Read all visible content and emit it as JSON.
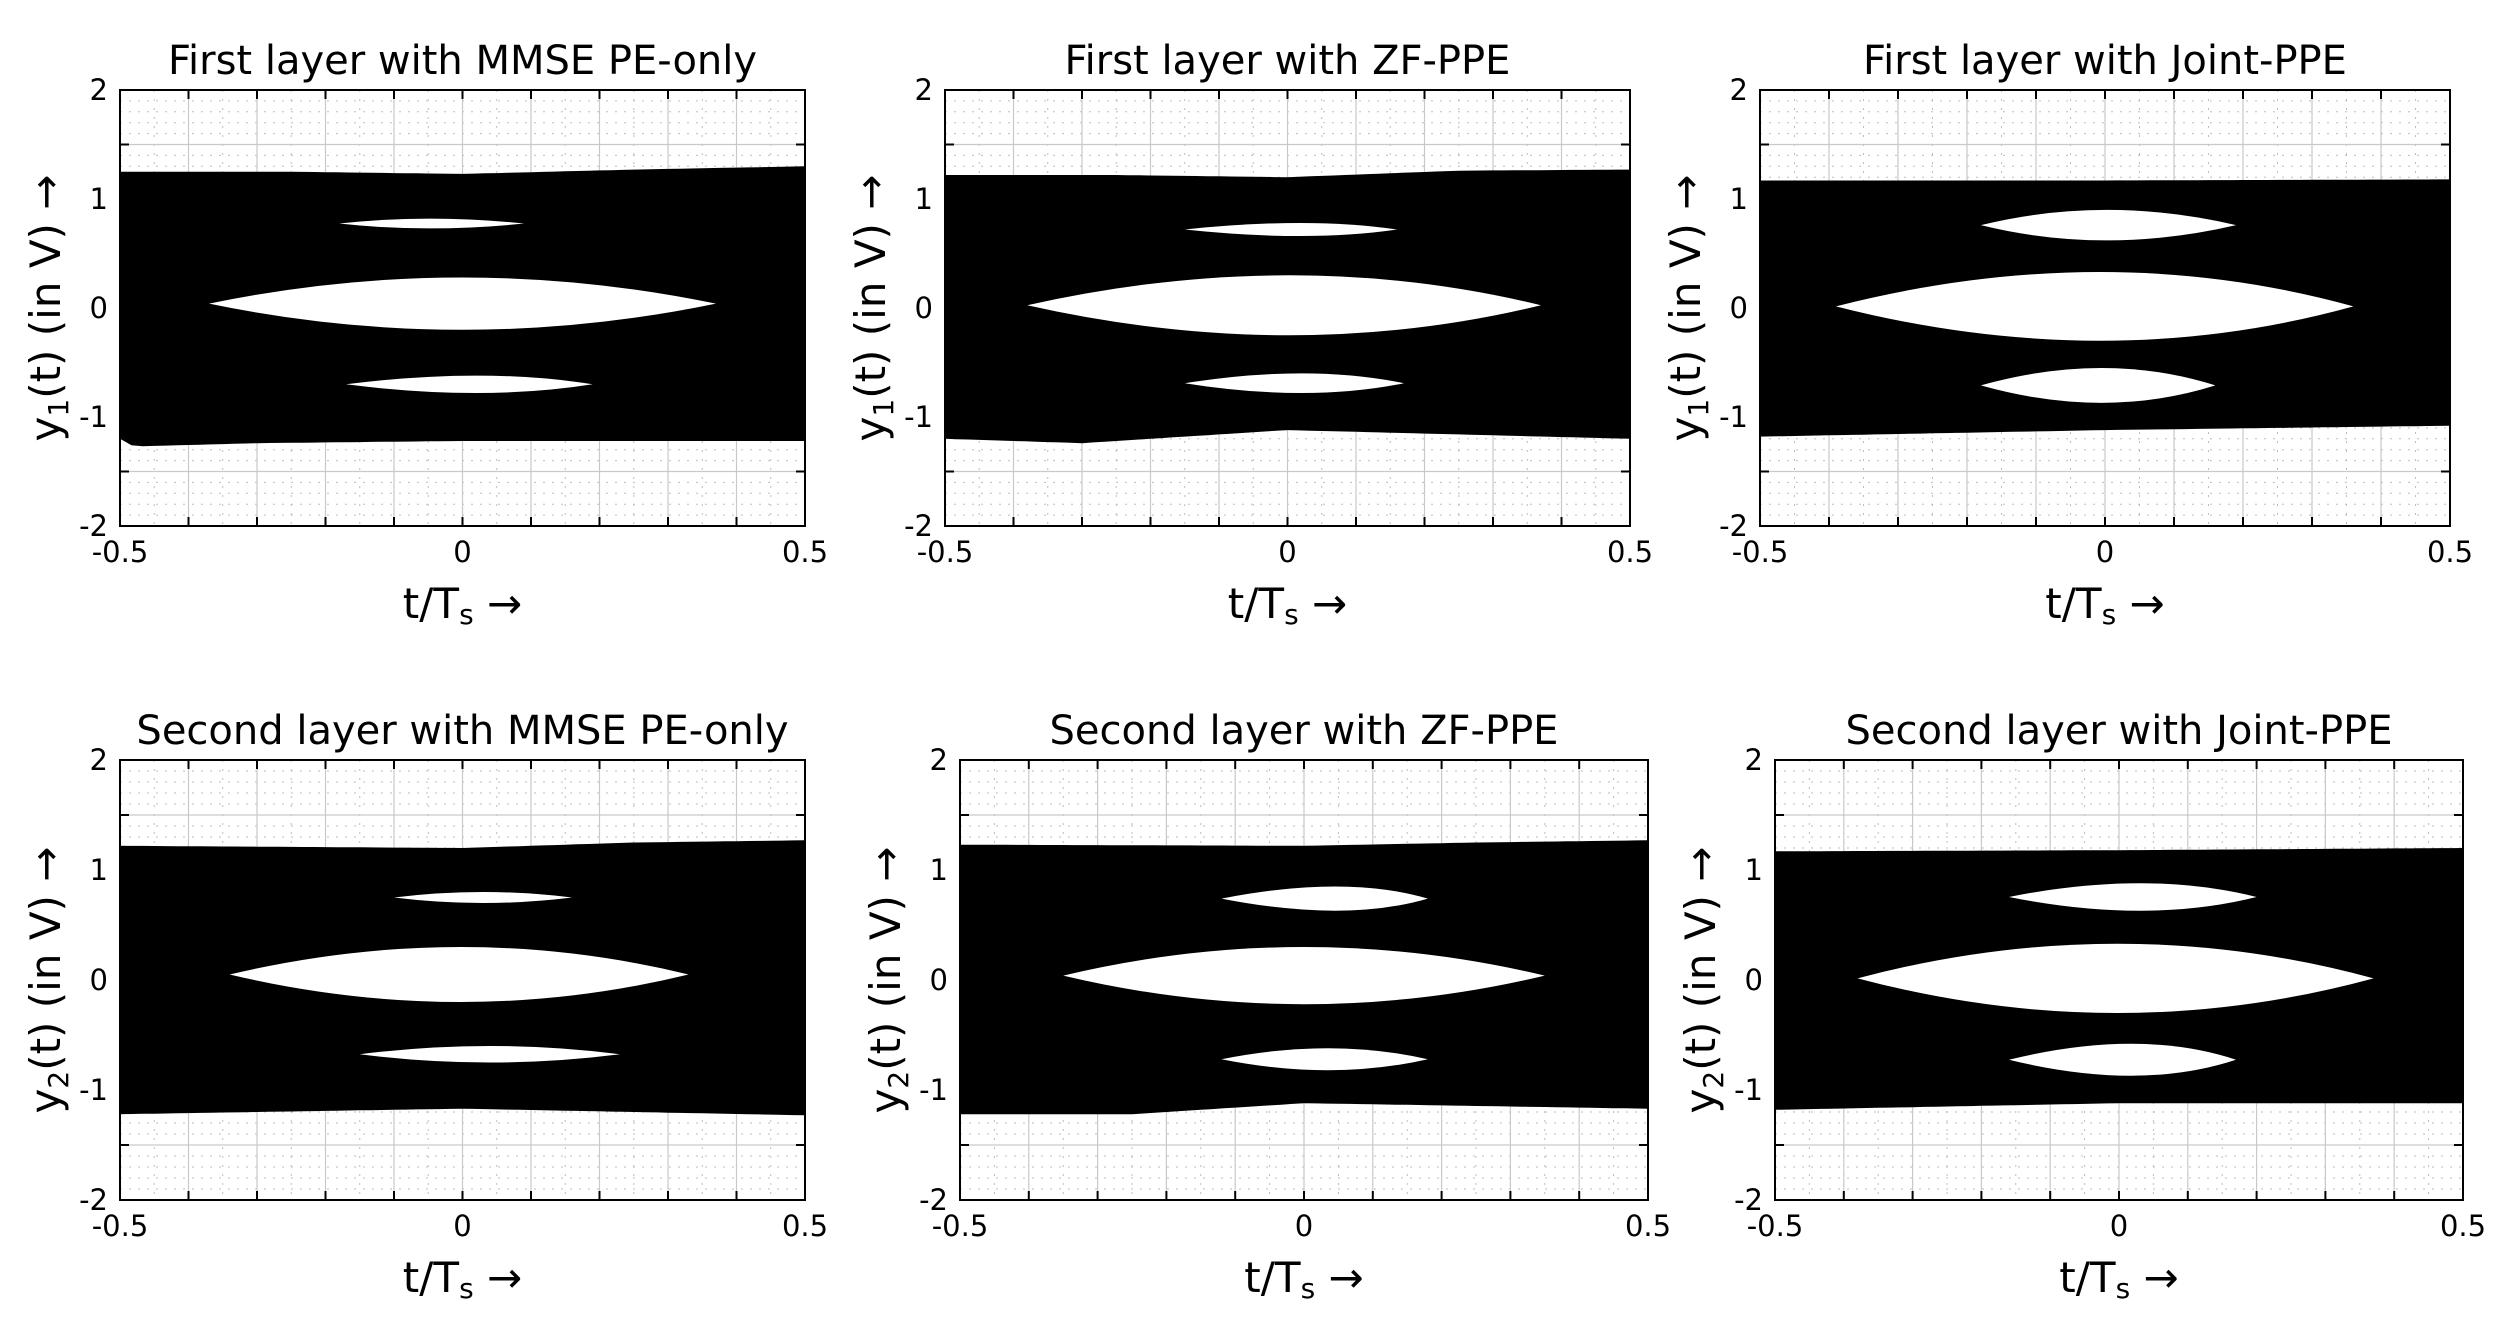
{
  "figure": {
    "xlabel_main": "t/T",
    "xlabel_sub": "s",
    "xlabel_arrow": "→",
    "ylabel_tail": "(t) (in V)",
    "ylabel_arrow": "→"
  },
  "chart_data": [
    {
      "type": "area",
      "title": "First layer with MMSE PE-only",
      "ylabel_base": "y",
      "ylabel_sub": "1",
      "xlim": [
        -0.5,
        0.5
      ],
      "ylim": [
        -2,
        2
      ],
      "xticks": [
        "-0.5",
        "0",
        "0.5"
      ],
      "yticks": [
        "2",
        "1",
        "0",
        "-1",
        "-2"
      ],
      "grid": true,
      "band": {
        "upper": [
          [
            -0.5,
            1.25
          ],
          [
            -0.25,
            1.25
          ],
          [
            0,
            1.23
          ],
          [
            0.25,
            1.27
          ],
          [
            0.5,
            1.3
          ]
        ],
        "lower": [
          [
            -0.5,
            -1.2
          ],
          [
            -0.48,
            -1.27
          ],
          [
            -0.3,
            -1.24
          ],
          [
            0,
            -1.22
          ],
          [
            0.5,
            -1.22
          ]
        ]
      },
      "eyes": [
        {
          "t0": -0.18,
          "t1": 0.09,
          "tc": -0.05,
          "top": 0.82,
          "bottom": 0.73
        },
        {
          "t0": -0.37,
          "t1": 0.37,
          "tc": 0.0,
          "top": 0.28,
          "bottom": -0.2
        },
        {
          "t0": -0.17,
          "t1": 0.19,
          "tc": 0.03,
          "top": -0.62,
          "bottom": -0.78
        }
      ]
    },
    {
      "type": "area",
      "title": "First layer with ZF-PPE",
      "ylabel_base": "y",
      "ylabel_sub": "1",
      "xlim": [
        -0.5,
        0.5
      ],
      "ylim": [
        -2,
        2
      ],
      "xticks": [
        "-0.5",
        "0",
        "0.5"
      ],
      "yticks": [
        "2",
        "1",
        "0",
        "-1",
        "-2"
      ],
      "grid": true,
      "band": {
        "upper": [
          [
            -0.5,
            1.22
          ],
          [
            -0.25,
            1.22
          ],
          [
            0,
            1.2
          ],
          [
            0.25,
            1.26
          ],
          [
            0.5,
            1.27
          ]
        ],
        "lower": [
          [
            -0.5,
            -1.2
          ],
          [
            -0.3,
            -1.24
          ],
          [
            0,
            -1.12
          ],
          [
            0.25,
            -1.16
          ],
          [
            0.5,
            -1.2
          ]
        ]
      },
      "eyes": [
        {
          "t0": -0.15,
          "t1": 0.16,
          "tc": 0.03,
          "top": 0.78,
          "bottom": 0.66
        },
        {
          "t0": -0.38,
          "t1": 0.37,
          "tc": 0.01,
          "top": 0.3,
          "bottom": -0.25
        },
        {
          "t0": -0.15,
          "t1": 0.17,
          "tc": 0.03,
          "top": -0.6,
          "bottom": -0.78
        }
      ]
    },
    {
      "type": "area",
      "title": "First layer with Joint-PPE",
      "ylabel_base": "y",
      "ylabel_sub": "1",
      "xlim": [
        -0.5,
        0.5
      ],
      "ylim": [
        -2,
        2
      ],
      "xticks": [
        "-0.5",
        "0",
        "0.5"
      ],
      "yticks": [
        "2",
        "1",
        "0",
        "-1",
        "-2"
      ],
      "grid": true,
      "band": {
        "upper": [
          [
            -0.5,
            1.17
          ],
          [
            0,
            1.17
          ],
          [
            0.5,
            1.18
          ]
        ],
        "lower": [
          [
            -0.5,
            -1.18
          ],
          [
            0,
            -1.12
          ],
          [
            0.5,
            -1.08
          ]
        ]
      },
      "eyes": [
        {
          "t0": -0.18,
          "t1": 0.19,
          "tc": 0.0,
          "top": 0.9,
          "bottom": 0.62
        },
        {
          "t0": -0.39,
          "t1": 0.36,
          "tc": 0.0,
          "top": 0.33,
          "bottom": -0.3
        },
        {
          "t0": -0.18,
          "t1": 0.16,
          "tc": 0.0,
          "top": -0.55,
          "bottom": -0.87
        }
      ]
    },
    {
      "type": "area",
      "title": "Second layer with MMSE PE-only",
      "ylabel_base": "y",
      "ylabel_sub": "2",
      "xlim": [
        -0.5,
        0.5
      ],
      "ylim": [
        -2,
        2
      ],
      "xticks": [
        "-0.5",
        "0",
        "0.5"
      ],
      "yticks": [
        "2",
        "1",
        "0",
        "-1",
        "-2"
      ],
      "grid": true,
      "band": {
        "upper": [
          [
            -0.5,
            1.22
          ],
          [
            0,
            1.2
          ],
          [
            0.25,
            1.25
          ],
          [
            0.5,
            1.27
          ]
        ],
        "lower": [
          [
            -0.5,
            -1.22
          ],
          [
            0,
            -1.17
          ],
          [
            0.5,
            -1.23
          ]
        ]
      },
      "eyes": [
        {
          "t0": -0.1,
          "t1": 0.16,
          "tc": 0.03,
          "top": 0.8,
          "bottom": 0.7
        },
        {
          "t0": -0.34,
          "t1": 0.33,
          "tc": 0.0,
          "top": 0.3,
          "bottom": -0.2
        },
        {
          "t0": -0.15,
          "t1": 0.23,
          "tc": 0.04,
          "top": -0.6,
          "bottom": -0.75
        }
      ]
    },
    {
      "type": "area",
      "title": "Second layer with ZF-PPE",
      "ylabel_base": "y",
      "ylabel_sub": "2",
      "xlim": [
        -0.5,
        0.5
      ],
      "ylim": [
        -2,
        2
      ],
      "xticks": [
        "-0.5",
        "0",
        "0.5"
      ],
      "yticks": [
        "2",
        "1",
        "0",
        "-1",
        "-2"
      ],
      "grid": true,
      "band": {
        "upper": [
          [
            -0.5,
            1.23
          ],
          [
            0,
            1.22
          ],
          [
            0.25,
            1.25
          ],
          [
            0.5,
            1.27
          ]
        ],
        "lower": [
          [
            -0.5,
            -1.22
          ],
          [
            -0.25,
            -1.22
          ],
          [
            0,
            -1.12
          ],
          [
            0.5,
            -1.17
          ]
        ]
      },
      "eyes": [
        {
          "t0": -0.12,
          "t1": 0.18,
          "tc": 0.06,
          "top": 0.85,
          "bottom": 0.63
        },
        {
          "t0": -0.35,
          "t1": 0.35,
          "tc": 0.0,
          "top": 0.3,
          "bottom": -0.22
        },
        {
          "t0": -0.12,
          "t1": 0.18,
          "tc": 0.04,
          "top": -0.62,
          "bottom": -0.82
        }
      ]
    },
    {
      "type": "area",
      "title": "Second layer with Joint-PPE",
      "ylabel_base": "y",
      "ylabel_sub": "2",
      "xlim": [
        -0.5,
        0.5
      ],
      "ylim": [
        -2,
        2
      ],
      "xticks": [
        "-0.5",
        "0",
        "0.5"
      ],
      "yticks": [
        "2",
        "1",
        "0",
        "-1",
        "-2"
      ],
      "grid": true,
      "band": {
        "upper": [
          [
            -0.5,
            1.17
          ],
          [
            0,
            1.18
          ],
          [
            0.5,
            1.2
          ]
        ],
        "lower": [
          [
            -0.5,
            -1.18
          ],
          [
            0,
            -1.12
          ],
          [
            0.5,
            -1.12
          ]
        ]
      },
      "eyes": [
        {
          "t0": -0.16,
          "t1": 0.2,
          "tc": 0.04,
          "top": 0.88,
          "bottom": 0.63
        },
        {
          "t0": -0.38,
          "t1": 0.37,
          "tc": 0.0,
          "top": 0.33,
          "bottom": -0.3
        },
        {
          "t0": -0.16,
          "t1": 0.17,
          "tc": 0.03,
          "top": -0.58,
          "bottom": -0.87
        }
      ]
    }
  ]
}
